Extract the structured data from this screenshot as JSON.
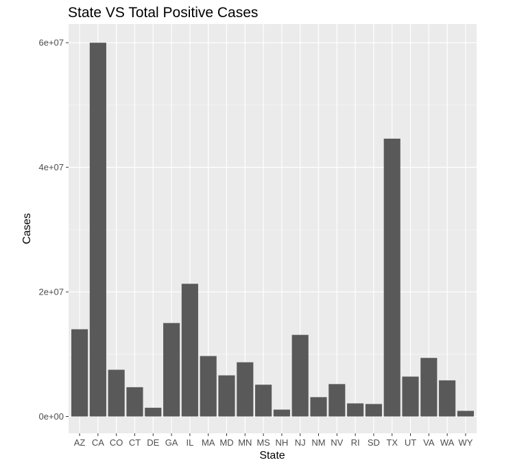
{
  "chart_data": {
    "type": "bar",
    "title": "State VS Total Positive Cases",
    "xlabel": "State",
    "ylabel": "Cases",
    "categories": [
      "AZ",
      "CA",
      "CO",
      "CT",
      "DE",
      "GA",
      "IL",
      "MA",
      "MD",
      "MN",
      "MS",
      "NH",
      "NJ",
      "NM",
      "NV",
      "RI",
      "SD",
      "TX",
      "UT",
      "VA",
      "WA",
      "WY"
    ],
    "values": [
      14000000,
      60000000,
      7500000,
      4700000,
      1400000,
      15000000,
      21300000,
      9700000,
      6600000,
      8700000,
      5100000,
      1100000,
      13100000,
      3100000,
      5200000,
      2100000,
      2000000,
      44600000,
      6400000,
      9400000,
      5800000,
      900000
    ],
    "ylim": [
      -2700000,
      63000000
    ],
    "yticks": [
      0,
      20000000,
      40000000,
      60000000
    ],
    "ytick_labels": [
      "0e+00",
      "2e+07",
      "4e+07",
      "6e+07"
    ],
    "grid": true,
    "legend": "none",
    "colors": {
      "bar": "#595959",
      "panel": "#ebebeb",
      "grid_major": "#ffffff",
      "grid_minor": "#f5f5f5",
      "tick": "#333333"
    }
  }
}
